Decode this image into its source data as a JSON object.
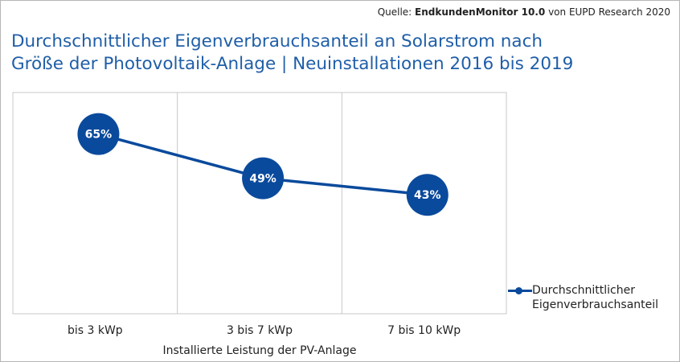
{
  "source": {
    "prefix": "Quelle:",
    "name": "EndkundenMonitor 10.0",
    "suffix": "von EUPD Research 2020"
  },
  "title_lines": [
    "Durchschnittlicher Eigenverbrauchsanteil an Solarstrom nach",
    "Größe der Photovoltaik-Anlage | Neuinstallationen 2016 bis 2019"
  ],
  "colors": {
    "title": "#1f5ea8",
    "series": "#0a4a9c",
    "grid": "#c8c8c8"
  },
  "chart_data": {
    "type": "line",
    "title": "Durchschnittlicher Eigenverbrauchsanteil an Solarstrom nach Größe der Photovoltaik-Anlage | Neuinstallationen 2016 bis 2019",
    "xlabel": "Installierte Leistung der PV-Anlage",
    "ylabel": "",
    "categories": [
      "bis 3 kWp",
      "3 bis 7 kWp",
      "7 bis 10 kWp"
    ],
    "series": [
      {
        "name": "Durchschnittlicher Eigenverbrauchsanteil",
        "values": [
          65,
          49,
          43
        ],
        "labels": [
          "65%",
          "49%",
          "43%"
        ]
      }
    ],
    "ylim": [
      0,
      80
    ],
    "grid": "vertical",
    "legend": "right",
    "marker": "large-circle-with-label"
  }
}
